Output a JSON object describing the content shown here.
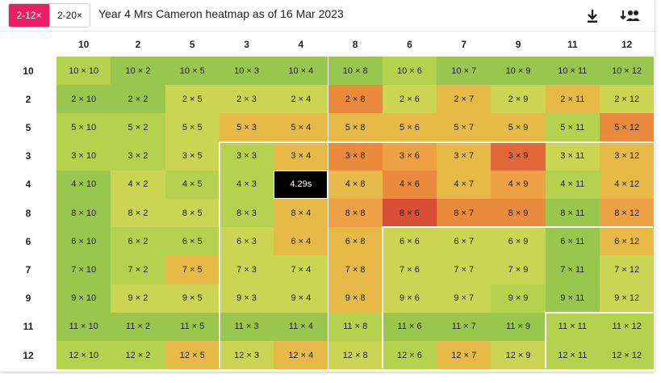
{
  "toolbar": {
    "toggle_left": "2-12×",
    "toggle_right": "2-20×",
    "title": "Year 4 Mrs Cameron heatmap as of 16 Mar 2023",
    "download_icon": "download-icon",
    "groups_icon": "group-sort-icon"
  },
  "colors": {
    "accent": "#e91e63",
    "scale": [
      "#86bf4a",
      "#99c74d",
      "#b5d24e",
      "#cbd553",
      "#e7b948",
      "#eda044",
      "#ea8a3c",
      "#e2673a",
      "#d84f36",
      "#000000"
    ]
  },
  "heatmap": {
    "columns": [
      "10",
      "2",
      "5",
      "3",
      "4",
      "8",
      "6",
      "7",
      "9",
      "11",
      "12"
    ],
    "rows": [
      {
        "label": "10",
        "cells": [
          {
            "text": "10 × 10",
            "level": 2
          },
          {
            "text": "10 × 2",
            "level": 1
          },
          {
            "text": "10 × 5",
            "level": 1
          },
          {
            "text": "10 × 3",
            "level": 1
          },
          {
            "text": "10 × 4",
            "level": 1
          },
          {
            "text": "10 × 8",
            "level": 1
          },
          {
            "text": "10 × 6",
            "level": 2
          },
          {
            "text": "10 × 7",
            "level": 1
          },
          {
            "text": "10 × 9",
            "level": 1
          },
          {
            "text": "10 × 11",
            "level": 1
          },
          {
            "text": "10 × 12",
            "level": 1
          }
        ]
      },
      {
        "label": "2",
        "cells": [
          {
            "text": "2 × 10",
            "level": 1
          },
          {
            "text": "2 × 2",
            "level": 1
          },
          {
            "text": "2 × 5",
            "level": 3
          },
          {
            "text": "2 × 3",
            "level": 3
          },
          {
            "text": "2 × 4",
            "level": 3
          },
          {
            "text": "2 × 8",
            "level": 6
          },
          {
            "text": "2 × 6",
            "level": 3
          },
          {
            "text": "2 × 7",
            "level": 4
          },
          {
            "text": "2 × 9",
            "level": 3
          },
          {
            "text": "2 × 11",
            "level": 4
          },
          {
            "text": "2 × 12",
            "level": 3
          }
        ]
      },
      {
        "label": "5",
        "cells": [
          {
            "text": "5 × 10",
            "level": 2
          },
          {
            "text": "5 × 2",
            "level": 2
          },
          {
            "text": "5 × 5",
            "level": 3
          },
          {
            "text": "5 × 3",
            "level": 4
          },
          {
            "text": "5 × 4",
            "level": 4
          },
          {
            "text": "5 × 8",
            "level": 4
          },
          {
            "text": "5 × 6",
            "level": 4
          },
          {
            "text": "5 × 7",
            "level": 4
          },
          {
            "text": "5 × 9",
            "level": 4
          },
          {
            "text": "5 × 11",
            "level": 2
          },
          {
            "text": "5 × 12",
            "level": 6
          }
        ]
      },
      {
        "label": "3",
        "cells": [
          {
            "text": "3 × 10",
            "level": 2
          },
          {
            "text": "3 × 2",
            "level": 2
          },
          {
            "text": "3 × 5",
            "level": 3
          },
          {
            "text": "3 × 3",
            "level": 2
          },
          {
            "text": "3 × 4",
            "level": 4
          },
          {
            "text": "3 × 8",
            "level": 6
          },
          {
            "text": "3 × 6",
            "level": 5
          },
          {
            "text": "3 × 7",
            "level": 4
          },
          {
            "text": "3 × 9",
            "level": 7
          },
          {
            "text": "3 × 11",
            "level": 3
          },
          {
            "text": "3 × 12",
            "level": 4
          }
        ]
      },
      {
        "label": "4",
        "cells": [
          {
            "text": "4 × 10",
            "level": 1
          },
          {
            "text": "4 × 2",
            "level": 3
          },
          {
            "text": "4 × 5",
            "level": 2
          },
          {
            "text": "4 × 3",
            "level": 2
          },
          {
            "text": "4.29s",
            "level": 9
          },
          {
            "text": "4 × 8",
            "level": 4
          },
          {
            "text": "4 × 6",
            "level": 6
          },
          {
            "text": "4 × 7",
            "level": 4
          },
          {
            "text": "4 × 9",
            "level": 5
          },
          {
            "text": "4 × 11",
            "level": 2
          },
          {
            "text": "4 × 12",
            "level": 4
          }
        ]
      },
      {
        "label": "8",
        "cells": [
          {
            "text": "8 × 10",
            "level": 1
          },
          {
            "text": "8 × 2",
            "level": 3
          },
          {
            "text": "8 × 5",
            "level": 3
          },
          {
            "text": "8 × 3",
            "level": 2
          },
          {
            "text": "8 × 4",
            "level": 4
          },
          {
            "text": "8 × 8",
            "level": 5
          },
          {
            "text": "8 × 6",
            "level": 8
          },
          {
            "text": "8 × 7",
            "level": 6
          },
          {
            "text": "8 × 9",
            "level": 6
          },
          {
            "text": "8 × 11",
            "level": 1
          },
          {
            "text": "8 × 12",
            "level": 5
          }
        ]
      },
      {
        "label": "6",
        "cells": [
          {
            "text": "6 × 10",
            "level": 1
          },
          {
            "text": "6 × 2",
            "level": 2
          },
          {
            "text": "6 × 5",
            "level": 2
          },
          {
            "text": "6 × 3",
            "level": 3
          },
          {
            "text": "6 × 4",
            "level": 4
          },
          {
            "text": "6 × 8",
            "level": 4
          },
          {
            "text": "6 × 6",
            "level": 3
          },
          {
            "text": "6 × 7",
            "level": 3
          },
          {
            "text": "6 × 9",
            "level": 3
          },
          {
            "text": "6 × 11",
            "level": 1
          },
          {
            "text": "6 × 12",
            "level": 4
          }
        ]
      },
      {
        "label": "7",
        "cells": [
          {
            "text": "7 × 10",
            "level": 1
          },
          {
            "text": "7 × 2",
            "level": 2
          },
          {
            "text": "7 × 5",
            "level": 4
          },
          {
            "text": "7 × 3",
            "level": 3
          },
          {
            "text": "7 × 4",
            "level": 3
          },
          {
            "text": "7 × 8",
            "level": 4
          },
          {
            "text": "7 × 6",
            "level": 3
          },
          {
            "text": "7 × 7",
            "level": 3
          },
          {
            "text": "7 × 9",
            "level": 3
          },
          {
            "text": "7 × 11",
            "level": 1
          },
          {
            "text": "7 × 12",
            "level": 3
          }
        ]
      },
      {
        "label": "9",
        "cells": [
          {
            "text": "9 × 10",
            "level": 1
          },
          {
            "text": "9 × 2",
            "level": 3
          },
          {
            "text": "9 × 5",
            "level": 3
          },
          {
            "text": "9 × 3",
            "level": 3
          },
          {
            "text": "9 × 4",
            "level": 3
          },
          {
            "text": "9 × 8",
            "level": 4
          },
          {
            "text": "9 × 6",
            "level": 3
          },
          {
            "text": "9 × 7",
            "level": 3
          },
          {
            "text": "9 × 9",
            "level": 2
          },
          {
            "text": "9 × 11",
            "level": 1
          },
          {
            "text": "9 × 12",
            "level": 3
          }
        ]
      },
      {
        "label": "11",
        "cells": [
          {
            "text": "11 × 10",
            "level": 1
          },
          {
            "text": "11 × 2",
            "level": 1
          },
          {
            "text": "11 × 5",
            "level": 1
          },
          {
            "text": "11 × 3",
            "level": 1
          },
          {
            "text": "11 × 4",
            "level": 1
          },
          {
            "text": "11 × 8",
            "level": 2
          },
          {
            "text": "11 × 6",
            "level": 1
          },
          {
            "text": "11 × 7",
            "level": 1
          },
          {
            "text": "11 × 9",
            "level": 1
          },
          {
            "text": "11 × 11",
            "level": 2
          },
          {
            "text": "11 × 12",
            "level": 2
          }
        ]
      },
      {
        "label": "12",
        "cells": [
          {
            "text": "12 × 10",
            "level": 2
          },
          {
            "text": "12 × 2",
            "level": 2
          },
          {
            "text": "12 × 5",
            "level": 4
          },
          {
            "text": "12 × 3",
            "level": 3
          },
          {
            "text": "12 × 4",
            "level": 4
          },
          {
            "text": "12 × 8",
            "level": 3
          },
          {
            "text": "12 × 6",
            "level": 2
          },
          {
            "text": "12 × 7",
            "level": 4
          },
          {
            "text": "12 × 9",
            "level": 3
          },
          {
            "text": "12 × 11",
            "level": 2
          },
          {
            "text": "12 × 12",
            "level": 2
          }
        ]
      }
    ]
  }
}
